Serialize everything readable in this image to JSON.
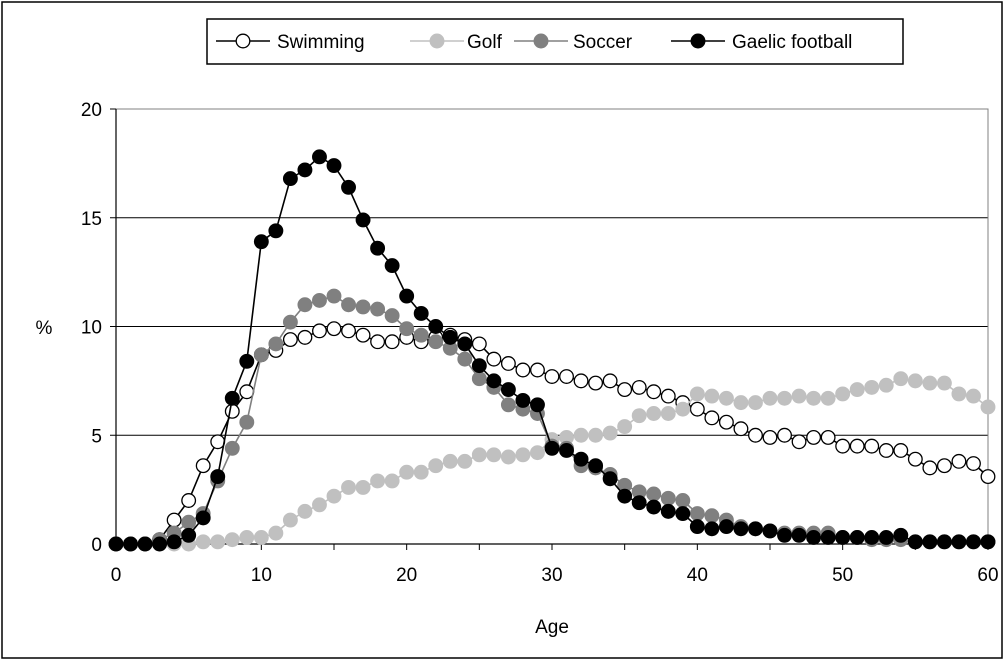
{
  "chart_data": {
    "type": "line",
    "title": "",
    "xlabel": "Age",
    "ylabel": "%",
    "xlim": [
      0,
      60
    ],
    "ylim": [
      0,
      20
    ],
    "xticks": [
      0,
      10,
      20,
      30,
      40,
      50,
      60
    ],
    "yticks": [
      0,
      5,
      10,
      15,
      20
    ],
    "grid": "horizontal",
    "legend_position": "top",
    "x": [
      0,
      1,
      2,
      3,
      4,
      5,
      6,
      7,
      8,
      9,
      10,
      11,
      12,
      13,
      14,
      15,
      16,
      17,
      18,
      19,
      20,
      21,
      22,
      23,
      24,
      25,
      26,
      27,
      28,
      29,
      30,
      31,
      32,
      33,
      34,
      35,
      36,
      37,
      38,
      39,
      40,
      41,
      42,
      43,
      44,
      45,
      46,
      47,
      48,
      49,
      50,
      51,
      52,
      53,
      54,
      55,
      56,
      57,
      58,
      59,
      60
    ],
    "series": [
      {
        "name": "Swimming",
        "marker": "open-circle",
        "fill": "#ffffff",
        "stroke": "#000000",
        "line": "#000000",
        "values": [
          0,
          0,
          0,
          0.2,
          1.1,
          2.0,
          3.6,
          4.7,
          6.1,
          7.0,
          8.7,
          8.9,
          9.4,
          9.5,
          9.8,
          9.9,
          9.8,
          9.6,
          9.3,
          9.3,
          9.5,
          9.3,
          9.5,
          9.6,
          9.4,
          9.2,
          8.5,
          8.3,
          8.0,
          8.0,
          7.7,
          7.7,
          7.5,
          7.4,
          7.5,
          7.1,
          7.2,
          7.0,
          6.8,
          6.5,
          6.2,
          5.8,
          5.6,
          5.3,
          5.0,
          4.9,
          5.0,
          4.7,
          4.9,
          4.9,
          4.5,
          4.5,
          4.5,
          4.3,
          4.3,
          3.9,
          3.5,
          3.6,
          3.8,
          3.7,
          3.1
        ]
      },
      {
        "name": "Golf",
        "marker": "light-grey-circle",
        "fill": "#c0c0c0",
        "stroke": "#c0c0c0",
        "line": "#c0c0c0",
        "values": [
          0,
          0,
          0,
          0,
          0,
          0,
          0.1,
          0.1,
          0.2,
          0.3,
          0.3,
          0.5,
          1.1,
          1.5,
          1.8,
          2.2,
          2.6,
          2.6,
          2.9,
          2.9,
          3.3,
          3.3,
          3.6,
          3.8,
          3.8,
          4.1,
          4.1,
          4.0,
          4.1,
          4.2,
          4.8,
          4.9,
          5.0,
          5.0,
          5.1,
          5.4,
          5.9,
          6.0,
          6.0,
          6.2,
          6.9,
          6.8,
          6.7,
          6.5,
          6.5,
          6.7,
          6.7,
          6.8,
          6.7,
          6.7,
          6.9,
          7.1,
          7.2,
          7.3,
          7.6,
          7.5,
          7.4,
          7.4,
          6.9,
          6.8,
          6.3
        ]
      },
      {
        "name": "Soccer",
        "marker": "grey-circle",
        "fill": "#808080",
        "stroke": "#808080",
        "line": "#808080",
        "values": [
          0,
          0,
          0,
          0.2,
          0.5,
          1.0,
          1.4,
          2.9,
          4.4,
          5.6,
          8.7,
          9.2,
          10.2,
          11.0,
          11.2,
          11.4,
          11.0,
          10.9,
          10.8,
          10.5,
          9.9,
          9.6,
          9.3,
          9.0,
          8.5,
          7.6,
          7.2,
          6.4,
          6.2,
          6.0,
          4.5,
          4.4,
          3.6,
          3.5,
          3.2,
          2.7,
          2.4,
          2.3,
          2.1,
          2.0,
          1.4,
          1.3,
          1.1,
          0.8,
          0.7,
          0.6,
          0.5,
          0.5,
          0.5,
          0.5,
          0.3,
          0.3,
          0.2,
          0.2,
          0.2,
          0.1,
          0.1,
          0.1,
          0.1,
          0.1,
          0.1
        ]
      },
      {
        "name": "Gaelic football",
        "marker": "black-circle",
        "fill": "#000000",
        "stroke": "#000000",
        "line": "#000000",
        "values": [
          0,
          0,
          0,
          0,
          0.1,
          0.4,
          1.2,
          3.1,
          6.7,
          8.4,
          13.9,
          14.4,
          16.8,
          17.2,
          17.8,
          17.4,
          16.4,
          14.9,
          13.6,
          12.8,
          11.4,
          10.6,
          10.0,
          9.5,
          9.2,
          8.2,
          7.5,
          7.1,
          6.6,
          6.4,
          4.4,
          4.3,
          3.9,
          3.6,
          3.0,
          2.2,
          1.9,
          1.7,
          1.5,
          1.4,
          0.8,
          0.7,
          0.8,
          0.7,
          0.7,
          0.6,
          0.4,
          0.4,
          0.3,
          0.3,
          0.3,
          0.3,
          0.3,
          0.3,
          0.4,
          0.1,
          0.1,
          0.1,
          0.1,
          0.1,
          0.1
        ]
      }
    ]
  }
}
